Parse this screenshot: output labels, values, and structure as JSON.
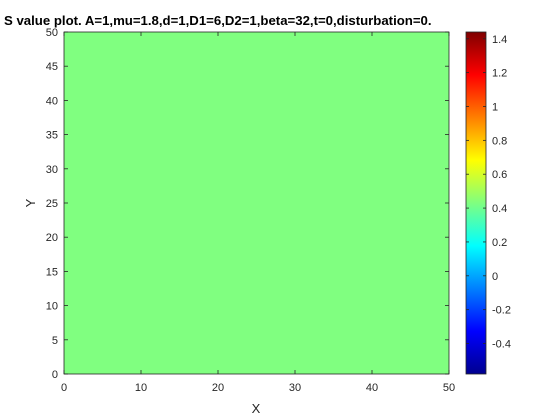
{
  "chart_data": {
    "type": "heatmap",
    "title": "S value plot. A=1,mu=1.8,d=1,D1=6,D2=1,beta=32,t=0,disturbation=0.",
    "xlabel": "X",
    "ylabel": "Y",
    "xlim": [
      0,
      50
    ],
    "ylim": [
      0,
      50
    ],
    "xticks": [
      "0",
      "10",
      "20",
      "30",
      "40",
      "50"
    ],
    "yticks": [
      "0",
      "5",
      "10",
      "15",
      "20",
      "25",
      "30",
      "35",
      "40",
      "45",
      "50"
    ],
    "field_value": 0.4,
    "field_color": "#80FF80",
    "colormap": "jet",
    "colorbar": {
      "range": [
        -0.58,
        1.44
      ],
      "ticks": [
        "-0.4",
        "-0.2",
        "0",
        "0.2",
        "0.4",
        "0.6",
        "0.8",
        "1",
        "1.2",
        "1.4"
      ]
    },
    "grid": false
  }
}
